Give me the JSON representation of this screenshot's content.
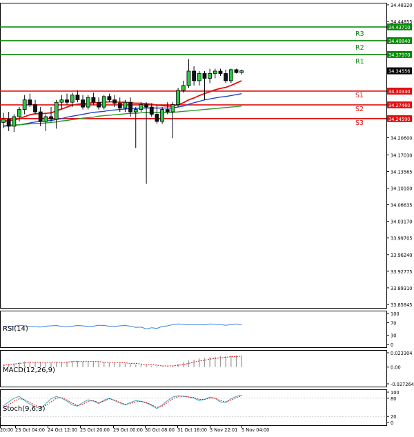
{
  "chart_data": [
    {
      "type": "candlestick",
      "price_axis": {
        "ticks": [
          "34.48320",
          "34.44855",
          "34.37970",
          "34.34556",
          "34.30330",
          "34.27460",
          "34.24590",
          "34.20600",
          "34.17030",
          "34.13565",
          "34.10100",
          "34.06635",
          "34.03170",
          "33.99705",
          "33.96240",
          "33.92775",
          "33.89310",
          "33.85845"
        ],
        "ylim": [
          33.85845,
          34.4832
        ]
      },
      "time_axis": {
        "ticks": [
          "20:00",
          "23 Oct 04:00",
          "24 Oct 12:00",
          "25 Oct 20:00",
          "29 Oct 00:00",
          "30 Oct 08:00",
          "31 Oct 16:00",
          "3 Nov 22:01",
          "5 Nov 04:00"
        ]
      },
      "levels": [
        {
          "name": "R3",
          "value": 34.4371,
          "value_label": "34.43710",
          "color": "#0a8a0a"
        },
        {
          "name": "R2",
          "value": 34.4084,
          "value_label": "34.40840",
          "color": "#0a8a0a"
        },
        {
          "name": "R1",
          "value": 34.3797,
          "value_label": "34.37970",
          "color": "#0a8a0a"
        },
        {
          "name": "S1",
          "value": 34.3033,
          "value_label": "34.30330",
          "color": "#e01010"
        },
        {
          "name": "S2",
          "value": 34.2746,
          "value_label": "34.27460",
          "color": "#e01010"
        },
        {
          "name": "S3",
          "value": 34.2459,
          "value_label": "34.24590",
          "color": "#e01010"
        }
      ],
      "current_price": {
        "value": 34.34556,
        "label": "34.34556"
      },
      "candles": [
        {
          "o": 34.238,
          "h": 34.258,
          "l": 34.226,
          "c": 34.245
        },
        {
          "o": 34.245,
          "h": 34.26,
          "l": 34.22,
          "c": 34.23
        },
        {
          "o": 34.23,
          "h": 34.255,
          "l": 34.218,
          "c": 34.25
        },
        {
          "o": 34.25,
          "h": 34.27,
          "l": 34.24,
          "c": 34.265
        },
        {
          "o": 34.265,
          "h": 34.295,
          "l": 34.255,
          "c": 34.285
        },
        {
          "o": 34.285,
          "h": 34.298,
          "l": 34.27,
          "c": 34.275
        },
        {
          "o": 34.275,
          "h": 34.285,
          "l": 34.255,
          "c": 34.26
        },
        {
          "o": 34.26,
          "h": 34.27,
          "l": 34.23,
          "c": 34.24
        },
        {
          "o": 34.24,
          "h": 34.255,
          "l": 34.22,
          "c": 34.25
        },
        {
          "o": 34.25,
          "h": 34.27,
          "l": 34.24,
          "c": 34.245
        },
        {
          "o": 34.245,
          "h": 34.285,
          "l": 34.225,
          "c": 34.28
        },
        {
          "o": 34.28,
          "h": 34.295,
          "l": 34.265,
          "c": 34.285
        },
        {
          "o": 34.285,
          "h": 34.298,
          "l": 34.275,
          "c": 34.28
        },
        {
          "o": 34.28,
          "h": 34.3,
          "l": 34.27,
          "c": 34.295
        },
        {
          "o": 34.295,
          "h": 34.305,
          "l": 34.28,
          "c": 34.285
        },
        {
          "o": 34.285,
          "h": 34.295,
          "l": 34.265,
          "c": 34.27
        },
        {
          "o": 34.27,
          "h": 34.295,
          "l": 34.265,
          "c": 34.29
        },
        {
          "o": 34.29,
          "h": 34.3,
          "l": 34.275,
          "c": 34.28
        },
        {
          "o": 34.28,
          "h": 34.29,
          "l": 34.265,
          "c": 34.27
        },
        {
          "o": 34.27,
          "h": 34.295,
          "l": 34.265,
          "c": 34.292
        },
        {
          "o": 34.292,
          "h": 34.298,
          "l": 34.28,
          "c": 34.285
        },
        {
          "o": 34.285,
          "h": 34.295,
          "l": 34.27,
          "c": 34.278
        },
        {
          "o": 34.278,
          "h": 34.29,
          "l": 34.26,
          "c": 34.268
        },
        {
          "o": 34.268,
          "h": 34.285,
          "l": 34.26,
          "c": 34.28
        },
        {
          "o": 34.28,
          "h": 34.29,
          "l": 34.25,
          "c": 34.26
        },
        {
          "o": 34.26,
          "h": 34.27,
          "l": 34.185,
          "c": 34.265
        },
        {
          "o": 34.265,
          "h": 34.28,
          "l": 34.26,
          "c": 34.275
        },
        {
          "o": 34.275,
          "h": 34.28,
          "l": 34.11,
          "c": 34.27
        },
        {
          "o": 34.27,
          "h": 34.278,
          "l": 34.25,
          "c": 34.255
        },
        {
          "o": 34.255,
          "h": 34.275,
          "l": 34.235,
          "c": 34.24
        },
        {
          "o": 34.24,
          "h": 34.27,
          "l": 34.235,
          "c": 34.265
        },
        {
          "o": 34.265,
          "h": 34.28,
          "l": 34.255,
          "c": 34.26
        },
        {
          "o": 34.26,
          "h": 34.28,
          "l": 34.205,
          "c": 34.275
        },
        {
          "o": 34.275,
          "h": 34.31,
          "l": 34.27,
          "c": 34.305
        },
        {
          "o": 34.305,
          "h": 34.325,
          "l": 34.3,
          "c": 34.315
        },
        {
          "o": 34.315,
          "h": 34.37,
          "l": 34.31,
          "c": 34.345
        },
        {
          "o": 34.345,
          "h": 34.355,
          "l": 34.315,
          "c": 34.325
        },
        {
          "o": 34.325,
          "h": 34.345,
          "l": 34.315,
          "c": 34.34
        },
        {
          "o": 34.34,
          "h": 34.345,
          "l": 34.285,
          "c": 34.33
        },
        {
          "o": 34.33,
          "h": 34.35,
          "l": 34.32,
          "c": 34.34
        },
        {
          "o": 34.34,
          "h": 34.35,
          "l": 34.33,
          "c": 34.345
        },
        {
          "o": 34.345,
          "h": 34.35,
          "l": 34.335,
          "c": 34.34
        },
        {
          "o": 34.34,
          "h": 34.348,
          "l": 34.32,
          "c": 34.325
        },
        {
          "o": 34.325,
          "h": 34.35,
          "l": 34.32,
          "c": 34.348
        },
        {
          "o": 34.348,
          "h": 34.35,
          "l": 34.34,
          "c": 34.342
        },
        {
          "o": 34.342,
          "h": 34.348,
          "l": 34.338,
          "c": 34.3456
        }
      ],
      "moving_averages": [
        {
          "color": "#e01010",
          "values": [
            34.24,
            34.242,
            34.243,
            34.246,
            34.25,
            34.254,
            34.256,
            34.256,
            34.257,
            34.258,
            34.262,
            34.266,
            34.27,
            34.274,
            34.276,
            34.277,
            34.278,
            34.279,
            34.279,
            34.28,
            34.281,
            34.281,
            34.28,
            34.28,
            34.279,
            34.278,
            34.278,
            34.277,
            34.276,
            34.274,
            34.273,
            34.272,
            34.272,
            34.275,
            34.279,
            34.285,
            34.289,
            34.294,
            34.298,
            34.302,
            34.306,
            34.309,
            34.311,
            34.315,
            34.32,
            34.325
          ]
        },
        {
          "color": "#2244cc",
          "values": [
            34.23,
            34.231,
            34.232,
            34.233,
            34.235,
            34.237,
            34.239,
            34.24,
            34.241,
            34.242,
            34.244,
            34.246,
            34.249,
            34.251,
            34.253,
            34.255,
            34.257,
            34.259,
            34.26,
            34.261,
            34.263,
            34.264,
            34.265,
            34.266,
            34.267,
            34.267,
            34.268,
            34.268,
            34.268,
            34.268,
            34.268,
            34.268,
            34.268,
            34.27,
            34.272,
            34.276,
            34.279,
            34.282,
            34.285,
            34.287,
            34.289,
            34.291,
            34.292,
            34.294,
            34.296,
            34.298
          ]
        },
        {
          "color": "#2a9a2a",
          "values": [
            34.231,
            34.232,
            34.233,
            34.233,
            34.234,
            34.235,
            34.236,
            34.236,
            34.237,
            34.238,
            34.239,
            34.241,
            34.242,
            34.244,
            34.245,
            34.247,
            34.248,
            34.249,
            34.251,
            34.252,
            34.253,
            34.254,
            34.255,
            34.256,
            34.257,
            34.257,
            34.258,
            34.259,
            34.259,
            34.259,
            34.259,
            34.259,
            34.259,
            34.26,
            34.261,
            34.262,
            34.263,
            34.264,
            34.265,
            34.266,
            34.267,
            34.268,
            34.269,
            34.27,
            34.271,
            34.272
          ]
        }
      ]
    },
    {
      "type": "line",
      "name": "RSI(14)",
      "ticks": [
        "100",
        "70",
        "30",
        "0"
      ],
      "ylim": [
        0,
        100
      ],
      "values": [
        56,
        57,
        59,
        62,
        60,
        58,
        57,
        56,
        59,
        60,
        61,
        58,
        57,
        59,
        61,
        60,
        58,
        59,
        62,
        61,
        59,
        58,
        60,
        61,
        59,
        55,
        56,
        50,
        54,
        52,
        58,
        60,
        64,
        66,
        65,
        63,
        65,
        64,
        63,
        66,
        65,
        64,
        62,
        64,
        66,
        63
      ]
    },
    {
      "type": "bar",
      "name": "MACD(12,26,9)",
      "ticks": [
        "0.023304",
        "0.00",
        "-0.027264"
      ],
      "ylim": [
        -0.027264,
        0.023304
      ],
      "histogram": [
        0.004,
        0.005,
        0.006,
        0.008,
        0.009,
        0.009,
        0.009,
        0.008,
        0.007,
        0.007,
        0.008,
        0.008,
        0.009,
        0.01,
        0.01,
        0.009,
        0.009,
        0.008,
        0.008,
        0.008,
        0.007,
        0.007,
        0.006,
        0.006,
        0.005,
        0.004,
        0.004,
        0.003,
        0.002,
        0.001,
        0.001,
        0.001,
        0.002,
        0.005,
        0.008,
        0.011,
        0.012,
        0.014,
        0.015,
        0.016,
        0.017,
        0.018,
        0.018,
        0.018,
        0.019,
        0.019
      ],
      "signal": [
        0.003,
        0.004,
        0.005,
        0.006,
        0.007,
        0.008,
        0.008,
        0.008,
        0.008,
        0.008,
        0.008,
        0.008,
        0.008,
        0.009,
        0.009,
        0.009,
        0.009,
        0.009,
        0.009,
        0.008,
        0.008,
        0.008,
        0.007,
        0.007,
        0.006,
        0.006,
        0.005,
        0.004,
        0.004,
        0.003,
        0.002,
        0.002,
        0.002,
        0.003,
        0.004,
        0.006,
        0.008,
        0.01,
        0.011,
        0.013,
        0.014,
        0.015,
        0.016,
        0.017,
        0.017,
        0.018
      ]
    },
    {
      "type": "line",
      "name": "Stoch(9,6,3)",
      "ticks": [
        "100",
        "80",
        "20",
        "0"
      ],
      "ylim": [
        0,
        100
      ],
      "series": [
        {
          "color": "#3aaec8",
          "values": [
            55,
            68,
            80,
            86,
            72,
            60,
            52,
            45,
            62,
            78,
            86,
            80,
            70,
            58,
            54,
            66,
            75,
            70,
            62,
            74,
            80,
            72,
            64,
            58,
            66,
            72,
            70,
            64,
            56,
            46,
            58,
            72,
            84,
            88,
            86,
            84,
            80,
            72,
            76,
            84,
            80,
            68,
            66,
            78,
            86,
            90
          ]
        },
        {
          "color": "#e01010",
          "values": [
            50,
            58,
            70,
            78,
            76,
            66,
            56,
            50,
            56,
            68,
            80,
            82,
            74,
            64,
            56,
            60,
            70,
            72,
            66,
            70,
            78,
            74,
            66,
            60,
            62,
            68,
            70,
            66,
            58,
            50,
            54,
            66,
            78,
            86,
            86,
            84,
            82,
            76,
            76,
            80,
            80,
            72,
            68,
            74,
            82,
            88
          ]
        }
      ]
    }
  ]
}
